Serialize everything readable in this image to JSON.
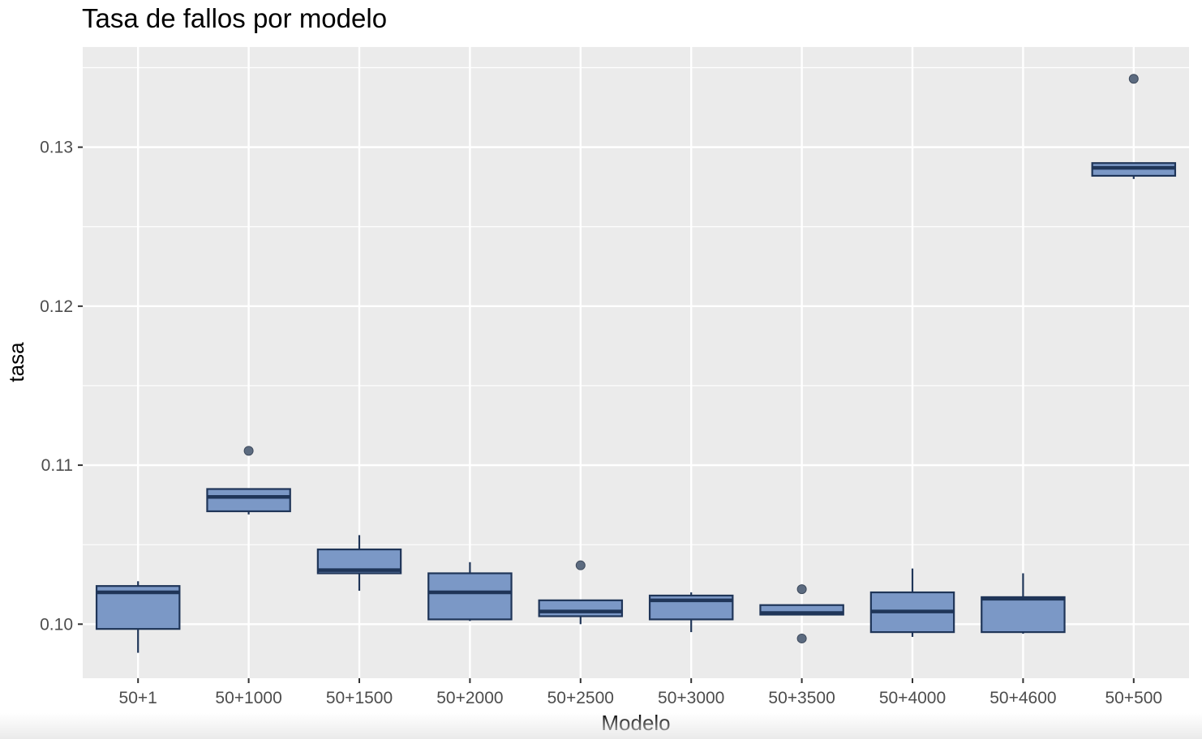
{
  "chart_data": {
    "type": "boxplot",
    "title": "Tasa de fallos por modelo",
    "xlabel": "Modelo",
    "ylabel": "tasa",
    "ylim": [
      0.0966,
      0.1363
    ],
    "yticks": [
      0.1,
      0.11,
      0.12,
      0.13
    ],
    "ytick_labels": [
      "0.10",
      "0.11",
      "0.12",
      "0.13"
    ],
    "grid": true,
    "colors": {
      "panel": "#ebebeb",
      "grid": "#ffffff",
      "box_fill": "#7b98c6",
      "box_line": "#1f3558",
      "outlier": "#5c6b80"
    },
    "categories": [
      "50+1",
      "50+1000",
      "50+1500",
      "50+2000",
      "50+2500",
      "50+3000",
      "50+3500",
      "50+4000",
      "50+4600",
      "50+500"
    ],
    "boxes": [
      {
        "category": "50+1",
        "whisker_low": 0.0982,
        "q1": 0.0997,
        "median": 0.102,
        "q3": 0.1024,
        "whisker_high": 0.1027,
        "outliers": []
      },
      {
        "category": "50+1000",
        "whisker_low": 0.1069,
        "q1": 0.1071,
        "median": 0.108,
        "q3": 0.1085,
        "whisker_high": 0.1085,
        "outliers": [
          0.1109
        ]
      },
      {
        "category": "50+1500",
        "whisker_low": 0.1021,
        "q1": 0.1032,
        "median": 0.1034,
        "q3": 0.1047,
        "whisker_high": 0.1056,
        "outliers": []
      },
      {
        "category": "50+2000",
        "whisker_low": 0.1002,
        "q1": 0.1003,
        "median": 0.102,
        "q3": 0.1032,
        "whisker_high": 0.1039,
        "outliers": []
      },
      {
        "category": "50+2500",
        "whisker_low": 0.1,
        "q1": 0.1005,
        "median": 0.1008,
        "q3": 0.1015,
        "whisker_high": 0.1015,
        "outliers": [
          0.1037
        ]
      },
      {
        "category": "50+3000",
        "whisker_low": 0.0995,
        "q1": 0.1003,
        "median": 0.1015,
        "q3": 0.1018,
        "whisker_high": 0.102,
        "outliers": []
      },
      {
        "category": "50+3500",
        "whisker_low": 0.1006,
        "q1": 0.1006,
        "median": 0.1007,
        "q3": 0.1012,
        "whisker_high": 0.1012,
        "outliers": [
          0.1022,
          0.0991
        ]
      },
      {
        "category": "50+4000",
        "whisker_low": 0.0992,
        "q1": 0.0995,
        "median": 0.1008,
        "q3": 0.102,
        "whisker_high": 0.1035,
        "outliers": []
      },
      {
        "category": "50+4600",
        "whisker_low": 0.0994,
        "q1": 0.0995,
        "median": 0.1016,
        "q3": 0.1017,
        "whisker_high": 0.1032,
        "outliers": []
      },
      {
        "category": "50+500",
        "whisker_low": 0.128,
        "q1": 0.1282,
        "median": 0.1287,
        "q3": 0.129,
        "whisker_high": 0.129,
        "outliers": [
          0.1343
        ]
      }
    ]
  }
}
